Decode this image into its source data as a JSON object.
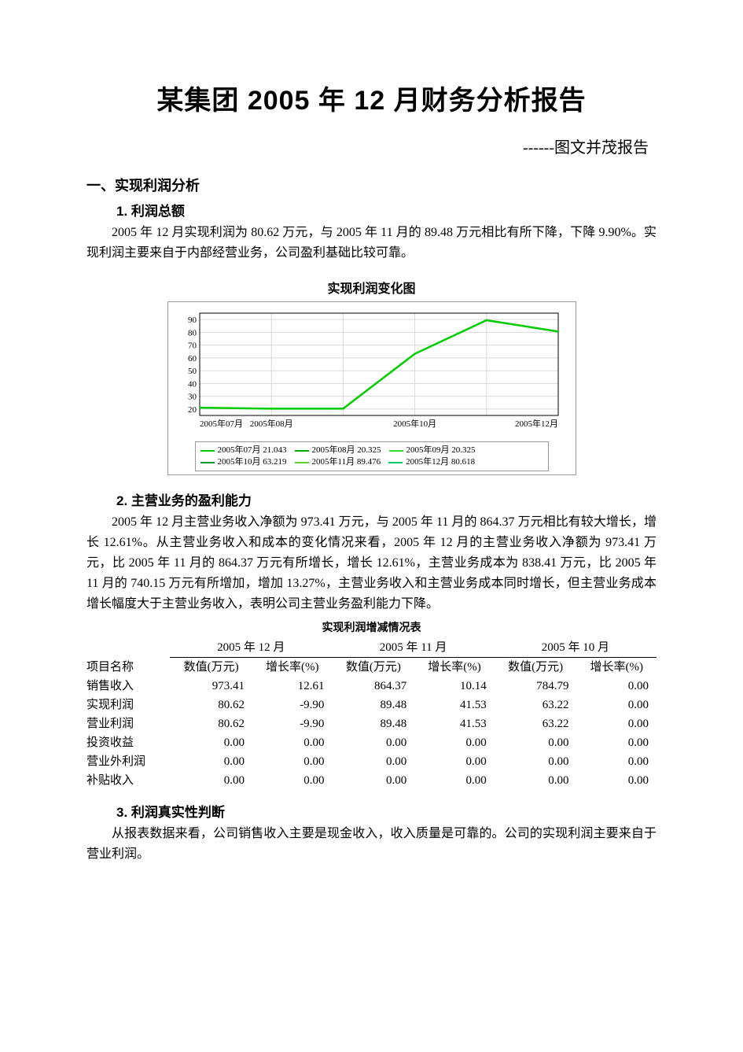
{
  "title": "某集团 2005 年 12 月财务分析报告",
  "subtitle": "------图文并茂报告",
  "section1": {
    "heading": "一、实现利润分析",
    "item1": {
      "heading": "1. 利润总额",
      "text": "2005 年 12 月实现利润为 80.62 万元，与 2005 年 11 月的 89.48 万元相比有所下降，下降 9.90%。实现利润主要来自于内部经营业务，公司盈利基础比较可靠。"
    },
    "item2": {
      "heading": "2. 主营业务的盈利能力",
      "text": "2005 年 12 月主营业务收入净额为 973.41 万元，与 2005 年 11 月的 864.37 万元相比有较大增长，增长 12.61%。从主营业务收入和成本的变化情况来看，2005 年 12 月的主营业务收入净额为 973.41 万元，比 2005 年 11 月的 864.37 万元有所增长，增长 12.61%，主营业务成本为 838.41 万元，比 2005 年 11 月的 740.15 万元有所增加，增加 13.27%，主营业务收入和主营业务成本同时增长，但主营业务成本增长幅度大于主营业务收入，表明公司主营业务盈利能力下降。"
    },
    "item3": {
      "heading": "3. 利润真实性判断",
      "text": "从报表数据来看，公司销售收入主要是现金收入，收入质量是可靠的。公司的实现利润主要来自于营业利润。"
    }
  },
  "chart": {
    "title": "实现利润变化图",
    "type": "line",
    "x_labels": [
      "2005年07月",
      "2005年08月",
      "",
      "2005年10月",
      "",
      "2005年12月"
    ],
    "y_ticks": [
      20,
      30,
      40,
      50,
      60,
      70,
      80,
      90
    ],
    "ylim": [
      15,
      95
    ],
    "series": {
      "color": "#00cc00",
      "points": [
        21.043,
        20.325,
        20.325,
        63.219,
        89.476,
        80.618
      ]
    },
    "legend": [
      {
        "label": "2005年07月 21.043",
        "color": "#00cc00"
      },
      {
        "label": "2005年08月 20.325",
        "color": "#00aa00"
      },
      {
        "label": "2005年09月 20.325",
        "color": "#33dd33"
      },
      {
        "label": "2005年10月 63.219",
        "color": "#009933"
      },
      {
        "label": "2005年11月 89.476",
        "color": "#66cc33"
      },
      {
        "label": "2005年12月 80.618",
        "color": "#00cc66"
      }
    ],
    "grid_color": "#d9d9d9",
    "axis_color": "#000000",
    "plot_bg": "#ffffff"
  },
  "table": {
    "title": "实现利润增减情况表",
    "group_headers": [
      "2005 年 12 月",
      "2005 年 11 月",
      "2005 年 10 月"
    ],
    "sub_headers": [
      "项目名称",
      "数值(万元)",
      "增长率(%)",
      "数值(万元)",
      "增长率(%)",
      "数值(万元)",
      "增长率(%)"
    ],
    "rows": [
      {
        "name": "销售收入",
        "v": [
          "973.41",
          "12.61",
          "864.37",
          "10.14",
          "784.79",
          "0.00"
        ]
      },
      {
        "name": "实现利润",
        "v": [
          "80.62",
          "-9.90",
          "89.48",
          "41.53",
          "63.22",
          "0.00"
        ]
      },
      {
        "name": "营业利润",
        "v": [
          "80.62",
          "-9.90",
          "89.48",
          "41.53",
          "63.22",
          "0.00"
        ]
      },
      {
        "name": "投资收益",
        "v": [
          "0.00",
          "0.00",
          "0.00",
          "0.00",
          "0.00",
          "0.00"
        ]
      },
      {
        "name": "营业外利润",
        "v": [
          "0.00",
          "0.00",
          "0.00",
          "0.00",
          "0.00",
          "0.00"
        ]
      },
      {
        "name": "补贴收入",
        "v": [
          "0.00",
          "0.00",
          "0.00",
          "0.00",
          "0.00",
          "0.00"
        ]
      }
    ]
  }
}
